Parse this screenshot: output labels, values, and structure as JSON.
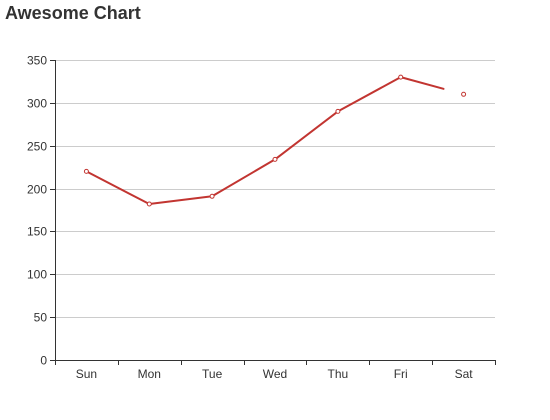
{
  "chart_data": {
    "type": "line",
    "title": "Awesome Chart",
    "categories": [
      "Sun",
      "Mon",
      "Tue",
      "Wed",
      "Thu",
      "Fri",
      "Sat"
    ],
    "series": [
      {
        "values": [
          220,
          182,
          191,
          234,
          290,
          330,
          310
        ],
        "color": "#c23531"
      }
    ],
    "ylim": [
      0,
      350
    ],
    "yticks": [
      0,
      50,
      100,
      150,
      200,
      250,
      300,
      350
    ],
    "ytick_labels": [
      "0",
      "50",
      "100",
      "150",
      "200",
      "250",
      "300",
      "350"
    ],
    "grid": true,
    "legend": "none"
  },
  "colors": {
    "line": "#c23531",
    "grid": "#cccccc",
    "axis": "#333333"
  }
}
